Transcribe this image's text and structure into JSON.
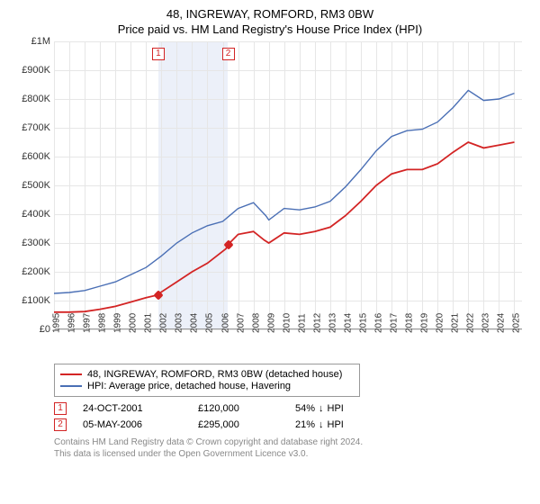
{
  "title": "48, INGREWAY, ROMFORD, RM3 0BW",
  "subtitle": "Price paid vs. HM Land Registry's House Price Index (HPI)",
  "chart": {
    "type": "line",
    "background_color": "#ffffff",
    "grid_color": "#e6e6e6",
    "ylim": [
      0,
      1000000
    ],
    "ytick_step": 100000,
    "ytick_labels": [
      "£0",
      "£100K",
      "£200K",
      "£300K",
      "£400K",
      "£500K",
      "£600K",
      "£700K",
      "£800K",
      "£900K",
      "£1M"
    ],
    "xlim": [
      1995,
      2025.5
    ],
    "xtick_step": 1,
    "xtick_start": 1995,
    "xtick_end": 2025,
    "band_color": "#ecf0f9",
    "band_start": 2001.8,
    "band_end": 2006.3,
    "series": [
      {
        "name": "property",
        "label": "48, INGREWAY, ROMFORD, RM3 0BW (detached house)",
        "color": "#d32424",
        "line_width": 1.8,
        "points": [
          [
            1995,
            60000
          ],
          [
            1996,
            60000
          ],
          [
            1997,
            62000
          ],
          [
            1998,
            70000
          ],
          [
            1999,
            80000
          ],
          [
            2000,
            95000
          ],
          [
            2001,
            110000
          ],
          [
            2001.8,
            120000
          ],
          [
            2002,
            130000
          ],
          [
            2003,
            165000
          ],
          [
            2004,
            200000
          ],
          [
            2005,
            230000
          ],
          [
            2006.2,
            280000
          ],
          [
            2006.35,
            295000
          ],
          [
            2007,
            330000
          ],
          [
            2008,
            340000
          ],
          [
            2008.7,
            310000
          ],
          [
            2009,
            300000
          ],
          [
            2010,
            335000
          ],
          [
            2011,
            330000
          ],
          [
            2012,
            340000
          ],
          [
            2013,
            355000
          ],
          [
            2014,
            395000
          ],
          [
            2015,
            445000
          ],
          [
            2016,
            500000
          ],
          [
            2017,
            540000
          ],
          [
            2018,
            555000
          ],
          [
            2019,
            555000
          ],
          [
            2020,
            575000
          ],
          [
            2021,
            615000
          ],
          [
            2022,
            650000
          ],
          [
            2023,
            630000
          ],
          [
            2024,
            640000
          ],
          [
            2025,
            650000
          ]
        ]
      },
      {
        "name": "hpi",
        "label": "HPI: Average price, detached house, Havering",
        "color": "#4a6fb5",
        "line_width": 1.4,
        "points": [
          [
            1995,
            125000
          ],
          [
            1996,
            128000
          ],
          [
            1997,
            135000
          ],
          [
            1998,
            150000
          ],
          [
            1999,
            165000
          ],
          [
            2000,
            190000
          ],
          [
            2001,
            215000
          ],
          [
            2002,
            255000
          ],
          [
            2003,
            300000
          ],
          [
            2004,
            335000
          ],
          [
            2005,
            360000
          ],
          [
            2006,
            375000
          ],
          [
            2007,
            420000
          ],
          [
            2008,
            440000
          ],
          [
            2008.8,
            395000
          ],
          [
            2009,
            380000
          ],
          [
            2010,
            420000
          ],
          [
            2011,
            415000
          ],
          [
            2012,
            425000
          ],
          [
            2013,
            445000
          ],
          [
            2014,
            495000
          ],
          [
            2015,
            555000
          ],
          [
            2016,
            620000
          ],
          [
            2017,
            670000
          ],
          [
            2018,
            690000
          ],
          [
            2019,
            695000
          ],
          [
            2020,
            720000
          ],
          [
            2021,
            770000
          ],
          [
            2022,
            830000
          ],
          [
            2023,
            795000
          ],
          [
            2024,
            800000
          ],
          [
            2025,
            820000
          ]
        ]
      }
    ],
    "sale_markers": [
      {
        "n": "1",
        "x": 2001.8,
        "y": 120000,
        "color": "#d32424",
        "size": 8,
        "label_y": 80000
      },
      {
        "n": "2",
        "x": 2006.35,
        "y": 295000,
        "color": "#d32424",
        "size": 8,
        "label_y": 80000
      }
    ]
  },
  "legend": {
    "items": [
      {
        "color": "#d32424",
        "label": "48, INGREWAY, ROMFORD, RM3 0BW (detached house)"
      },
      {
        "color": "#4a6fb5",
        "label": "HPI: Average price, detached house, Havering"
      }
    ]
  },
  "sales": [
    {
      "n": "1",
      "color": "#d32424",
      "date": "24-OCT-2001",
      "price": "£120,000",
      "delta_pct": "54%",
      "delta_dir": "↓",
      "delta_suffix": "HPI"
    },
    {
      "n": "2",
      "color": "#d32424",
      "date": "05-MAY-2006",
      "price": "£295,000",
      "delta_pct": "21%",
      "delta_dir": "↓",
      "delta_suffix": "HPI"
    }
  ],
  "footer_line1": "Contains HM Land Registry data © Crown copyright and database right 2024.",
  "footer_line2": "This data is licensed under the Open Government Licence v3.0."
}
